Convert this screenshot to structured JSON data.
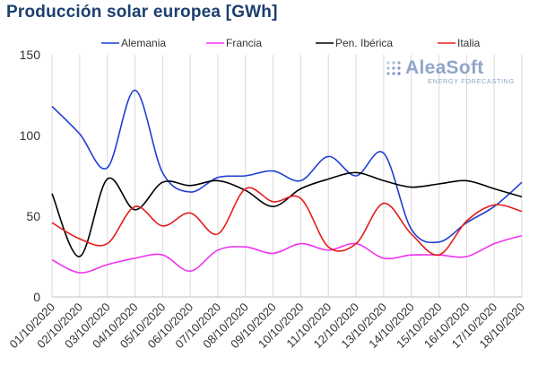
{
  "title": "Producción solar europea [GWh]",
  "logo": {
    "name": "AleaSoft",
    "subtitle": "ENERGY FORECASTING",
    "icon": "grid-dots-icon",
    "color": "#8fa6c9"
  },
  "chart_data": {
    "type": "line",
    "title": "Producción solar europea [GWh]",
    "xlabel": "",
    "ylabel": "",
    "ylim": [
      0,
      150
    ],
    "yticks": [
      0,
      50,
      100,
      150
    ],
    "grid": "vertical",
    "legend_position": "top",
    "x": [
      "01/10/2020",
      "02/10/2020",
      "03/10/2020",
      "04/10/2020",
      "05/10/2020",
      "06/10/2020",
      "07/10/2020",
      "08/10/2020",
      "09/10/2020",
      "10/10/2020",
      "11/10/2020",
      "12/10/2020",
      "13/10/2020",
      "14/10/2020",
      "15/10/2020",
      "16/10/2020",
      "17/10/2020",
      "18/10/2020"
    ],
    "series": [
      {
        "name": "Alemania",
        "color": "#1f3fd1",
        "values": [
          118,
          101,
          80,
          128,
          77,
          65,
          74,
          75,
          78,
          72,
          87,
          75,
          89,
          42,
          34,
          46,
          56,
          71
        ]
      },
      {
        "name": "Francia",
        "color": "#f033f0",
        "values": [
          23,
          15,
          20,
          24,
          26,
          16,
          29,
          31,
          27,
          33,
          29,
          33,
          24,
          26,
          26,
          25,
          33,
          38
        ]
      },
      {
        "name": "Pen. Ibérica",
        "color": "#000000",
        "values": [
          64,
          25,
          73,
          54,
          71,
          69,
          72,
          66,
          56,
          67,
          73,
          77,
          72,
          68,
          70,
          72,
          67,
          62
        ]
      },
      {
        "name": "Italia",
        "color": "#e61b1b",
        "values": [
          46,
          36,
          33,
          56,
          44,
          52,
          39,
          67,
          59,
          61,
          31,
          33,
          58,
          39,
          26,
          47,
          57,
          53
        ]
      }
    ]
  }
}
